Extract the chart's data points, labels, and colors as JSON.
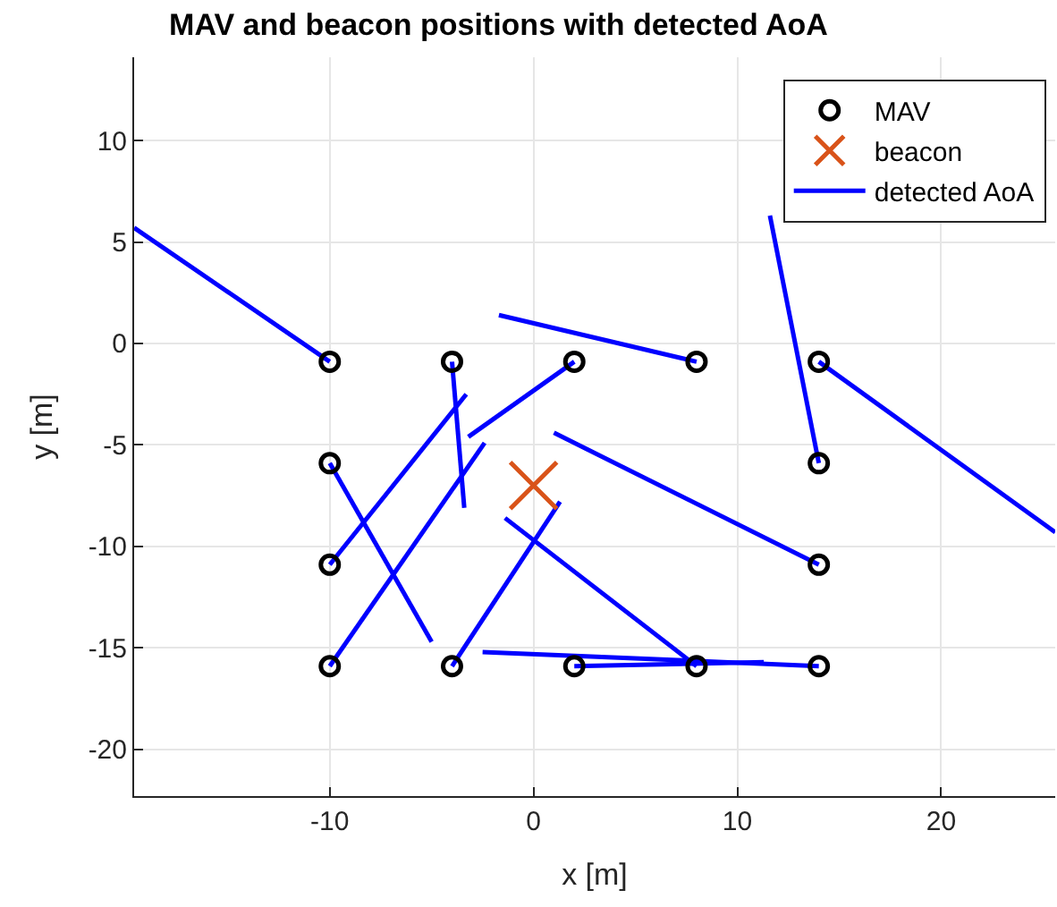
{
  "chart_data": {
    "type": "scatter",
    "title": "MAV and beacon positions with detected AoA",
    "xlabel": "x [m]",
    "ylabel": "y [m]",
    "xlim": [
      -19.6,
      25.6
    ],
    "ylim": [
      -22.3,
      14.1
    ],
    "xticks": [
      -10,
      0,
      10,
      20
    ],
    "yticks": [
      -20,
      -15,
      -10,
      -5,
      0,
      5,
      10
    ],
    "grid": true,
    "legend": "top right",
    "series": [
      {
        "name": "MAV",
        "marker": "circle",
        "color": "#000000",
        "x": [
          -10,
          -4,
          2,
          8,
          14,
          -10,
          14,
          -10,
          14,
          -10,
          -4,
          2,
          8,
          14
        ],
        "values": [
          -0.9,
          -0.9,
          -0.9,
          -0.9,
          -0.9,
          -5.9,
          -5.9,
          -10.9,
          -10.9,
          -15.9,
          -15.9,
          -15.9,
          -15.9,
          -15.9
        ]
      },
      {
        "name": "beacon",
        "marker": "cross",
        "color": "#d95319",
        "x": [
          0
        ],
        "values": [
          -7
        ]
      },
      {
        "name": "detected AoA",
        "type": "line",
        "marker": "none",
        "line_style": "solid",
        "color": "#0000ff",
        "x": [
          -10,
          -19.6,
          null,
          -4,
          -3.4,
          null,
          2,
          -3.2,
          null,
          8,
          -1.7,
          null,
          14,
          25.6,
          null,
          -10,
          -5.0,
          null,
          14,
          11.6,
          null,
          -10,
          -3.3,
          null,
          14,
          1.0,
          null,
          -10,
          -2.4,
          null,
          -4,
          1.3,
          null,
          2,
          11.3,
          null,
          8,
          -1.4,
          null,
          14,
          -2.5
        ],
        "values": [
          -0.9,
          5.7,
          null,
          -0.9,
          -8.1,
          null,
          -0.9,
          -4.6,
          null,
          -0.9,
          1.4,
          null,
          -0.9,
          -9.3,
          null,
          -5.9,
          -14.7,
          null,
          -5.9,
          6.3,
          null,
          -10.9,
          -2.5,
          null,
          -10.9,
          -4.4,
          null,
          -15.9,
          -4.9,
          null,
          -15.9,
          -7.8,
          null,
          -15.9,
          -15.7,
          null,
          -15.9,
          -8.6,
          null,
          -15.9,
          -15.2
        ]
      }
    ]
  }
}
